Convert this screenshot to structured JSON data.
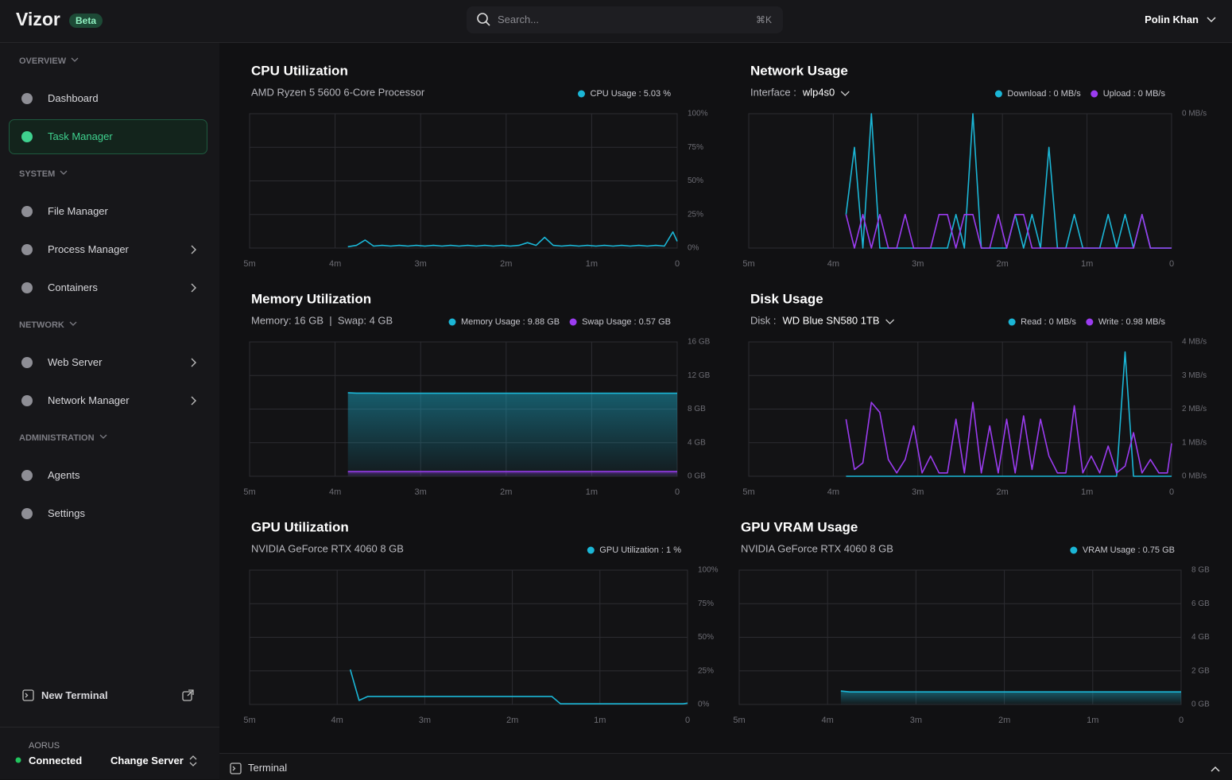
{
  "header": {
    "brand": "Vizor",
    "badge": "Beta",
    "search_placeholder": "Search...",
    "search_shortcut": "⌘K",
    "user_name": "Polin Khan"
  },
  "sidebar": {
    "sections": [
      {
        "title": "OVERVIEW",
        "items": [
          {
            "label": "Dashboard"
          },
          {
            "label": "Task Manager",
            "active": true
          }
        ]
      },
      {
        "title": "SYSTEM",
        "items": [
          {
            "label": "File Manager"
          },
          {
            "label": "Process Manager",
            "submenu": true
          },
          {
            "label": "Containers",
            "submenu": true
          }
        ]
      },
      {
        "title": "NETWORK",
        "items": [
          {
            "label": "Web Server",
            "submenu": true
          },
          {
            "label": "Network Manager",
            "submenu": true
          }
        ]
      },
      {
        "title": "ADMINISTRATION",
        "items": [
          {
            "label": "Agents"
          },
          {
            "label": "Settings"
          }
        ]
      }
    ],
    "new_terminal": "New Terminal",
    "server_name": "AORUS",
    "server_status": "Connected",
    "change_server": "Change Server"
  },
  "terminal_bar": {
    "label": "Terminal"
  },
  "chart_data": [
    {
      "type": "line",
      "title": "CPU Utilization",
      "subtitle": "AMD Ryzen 5 5600 6-Core Processor",
      "x": [
        3.85,
        3.75,
        3.65,
        3.55,
        3.45,
        3.35,
        3.25,
        3.15,
        3.05,
        2.95,
        2.85,
        2.75,
        2.65,
        2.55,
        2.45,
        2.35,
        2.25,
        2.15,
        2.05,
        1.95,
        1.85,
        1.75,
        1.65,
        1.55,
        1.45,
        1.35,
        1.25,
        1.15,
        1.05,
        0.95,
        0.85,
        0.75,
        0.65,
        0.55,
        0.45,
        0.35,
        0.25,
        0.15,
        0.05,
        0
      ],
      "xlim": [
        5,
        0
      ],
      "xticks": [
        {
          "value": 5,
          "label": "5m"
        },
        {
          "value": 4,
          "label": "4m"
        },
        {
          "value": 3,
          "label": "3m"
        },
        {
          "value": 2,
          "label": "2m"
        },
        {
          "value": 1,
          "label": "1m"
        },
        0
      ],
      "ylim": [
        0,
        100
      ],
      "yticks": [
        {
          "value": 0,
          "label": "0%"
        },
        {
          "value": 25,
          "label": "25%"
        },
        {
          "value": 50,
          "label": "50%"
        },
        {
          "value": 75,
          "label": "75%"
        },
        {
          "value": 100,
          "label": "100%"
        }
      ],
      "grid": true,
      "series": [
        {
          "name": "CPU Usage : 5.03 %",
          "color": "#1bb6d6",
          "values": [
            1,
            2,
            6,
            1.5,
            2,
            1.5,
            2,
            1.5,
            2,
            1.5,
            2,
            1.5,
            2,
            1.5,
            2,
            1.5,
            2,
            1.5,
            2,
            1.5,
            2,
            4,
            2,
            8,
            2,
            1.5,
            2,
            1.5,
            2,
            1.5,
            2,
            1.5,
            2,
            1.5,
            2,
            1.5,
            2,
            1.5,
            12,
            5.03
          ]
        }
      ]
    },
    {
      "type": "line",
      "title": "Network Usage",
      "subtitle": "Interface :",
      "selector": "wlp4s0",
      "x": [
        3.85,
        3.75,
        3.65,
        3.55,
        3.45,
        3.35,
        3.25,
        3.15,
        3.05,
        2.95,
        2.85,
        2.75,
        2.65,
        2.55,
        2.45,
        2.35,
        2.25,
        2.15,
        2.05,
        1.95,
        1.85,
        1.75,
        1.65,
        1.55,
        1.45,
        1.35,
        1.25,
        1.15,
        1.05,
        0.95,
        0.85,
        0.75,
        0.65,
        0.55,
        0.45,
        0.35,
        0.25,
        0.15,
        0.05,
        0
      ],
      "xlim": [
        5,
        0
      ],
      "xticks": [
        {
          "value": 5,
          "label": "5m"
        },
        {
          "value": 4,
          "label": "4m"
        },
        {
          "value": 3,
          "label": "3m"
        },
        {
          "value": 2,
          "label": "2m"
        },
        {
          "value": 1,
          "label": "1m"
        },
        0
      ],
      "ylim": [
        0,
        0.004
      ],
      "yticks": [
        {
          "value": 0.004,
          "label": "0 MB/s"
        }
      ],
      "grid": true,
      "series": [
        {
          "name": "Download : 0 MB/s",
          "color": "#1bb6d6",
          "values": [
            0.001,
            0.003,
            0,
            0.004,
            0,
            0,
            0,
            0,
            0,
            0,
            0,
            0,
            0,
            0.001,
            0,
            0.004,
            0,
            0,
            0,
            0,
            0.001,
            0,
            0.001,
            0,
            0.003,
            0,
            0,
            0.001,
            0,
            0,
            0,
            0.001,
            0,
            0.001,
            0,
            0.001,
            0,
            0,
            0,
            0
          ]
        },
        {
          "name": "Upload : 0 MB/s",
          "color": "#9b3cf0",
          "values": [
            0.001,
            0,
            0.001,
            0,
            0.001,
            0,
            0,
            0.001,
            0,
            0,
            0,
            0.001,
            0.001,
            0,
            0.001,
            0.001,
            0,
            0,
            0.001,
            0,
            0.001,
            0.001,
            0,
            0,
            0,
            0,
            0,
            0,
            0,
            0,
            0,
            0,
            0,
            0,
            0,
            0.001,
            0,
            0,
            0,
            0
          ]
        }
      ]
    },
    {
      "type": "area",
      "title": "Memory Utilization",
      "subtitle": "Memory: 16 GB  |  Swap: 4 GB",
      "x": [
        3.85,
        3.75,
        3.65,
        3.55,
        3.45,
        3.35,
        3.25,
        3.15,
        3.05,
        2.95,
        2.85,
        2.75,
        2.65,
        2.55,
        2.45,
        2.35,
        2.25,
        2.15,
        2.05,
        1.95,
        1.85,
        1.75,
        1.65,
        1.55,
        1.45,
        1.35,
        1.25,
        1.15,
        1.05,
        0.95,
        0.85,
        0.75,
        0.65,
        0.55,
        0.45,
        0.35,
        0.25,
        0.15,
        0.05,
        0
      ],
      "xlim": [
        5,
        0
      ],
      "xticks": [
        {
          "value": 5,
          "label": "5m"
        },
        {
          "value": 4,
          "label": "4m"
        },
        {
          "value": 3,
          "label": "3m"
        },
        {
          "value": 2,
          "label": "2m"
        },
        {
          "value": 1,
          "label": "1m"
        },
        0
      ],
      "ylim": [
        0,
        16
      ],
      "yticks": [
        {
          "value": 0,
          "label": "0 GB"
        },
        {
          "value": 4,
          "label": "4 GB"
        },
        {
          "value": 8,
          "label": "8 GB"
        },
        {
          "value": 12,
          "label": "12 GB"
        },
        {
          "value": 16,
          "label": "16 GB"
        }
      ],
      "grid": true,
      "series": [
        {
          "name": "Memory Usage : 9.88 GB",
          "color": "#1bb6d6",
          "values": [
            9.95,
            9.9,
            9.9,
            9.9,
            9.88,
            9.88,
            9.88,
            9.88,
            9.88,
            9.88,
            9.88,
            9.88,
            9.88,
            9.88,
            9.88,
            9.88,
            9.88,
            9.88,
            9.88,
            9.88,
            9.88,
            9.88,
            9.88,
            9.88,
            9.88,
            9.88,
            9.88,
            9.88,
            9.88,
            9.88,
            9.88,
            9.88,
            9.88,
            9.88,
            9.88,
            9.88,
            9.88,
            9.88,
            9.88,
            9.88
          ]
        },
        {
          "name": "Swap Usage : 0.57 GB",
          "color": "#9b3cf0",
          "values": [
            0.57,
            0.57,
            0.57,
            0.57,
            0.57,
            0.57,
            0.57,
            0.57,
            0.57,
            0.57,
            0.57,
            0.57,
            0.57,
            0.57,
            0.57,
            0.57,
            0.57,
            0.57,
            0.57,
            0.57,
            0.57,
            0.57,
            0.57,
            0.57,
            0.57,
            0.57,
            0.57,
            0.57,
            0.57,
            0.57,
            0.57,
            0.57,
            0.57,
            0.57,
            0.57,
            0.57,
            0.57,
            0.57,
            0.57,
            0.57
          ]
        }
      ]
    },
    {
      "type": "line",
      "title": "Disk Usage",
      "subtitle": "Disk :",
      "selector": "WD Blue SN580 1TB",
      "x": [
        3.85,
        3.75,
        3.65,
        3.55,
        3.45,
        3.35,
        3.25,
        3.15,
        3.05,
        2.95,
        2.85,
        2.75,
        2.65,
        2.55,
        2.45,
        2.35,
        2.25,
        2.15,
        2.05,
        1.95,
        1.85,
        1.75,
        1.65,
        1.55,
        1.45,
        1.35,
        1.25,
        1.15,
        1.05,
        0.95,
        0.85,
        0.75,
        0.65,
        0.55,
        0.45,
        0.35,
        0.25,
        0.15,
        0.05,
        0
      ],
      "xlim": [
        5,
        0
      ],
      "xticks": [
        {
          "value": 5,
          "label": "5m"
        },
        {
          "value": 4,
          "label": "4m"
        },
        {
          "value": 3,
          "label": "3m"
        },
        {
          "value": 2,
          "label": "2m"
        },
        {
          "value": 1,
          "label": "1m"
        },
        0
      ],
      "ylim": [
        0,
        4
      ],
      "yticks": [
        {
          "value": 0,
          "label": "0 MB/s"
        },
        {
          "value": 1,
          "label": "1 MB/s"
        },
        {
          "value": 2,
          "label": "2 MB/s"
        },
        {
          "value": 3,
          "label": "3 MB/s"
        },
        {
          "value": 4,
          "label": "4 MB/s"
        }
      ],
      "grid": true,
      "series": [
        {
          "name": "Read : 0 MB/s",
          "color": "#1bb6d6",
          "values": [
            0,
            0,
            0,
            0,
            0,
            0,
            0,
            0,
            0,
            0,
            0,
            0,
            0,
            0,
            0,
            0,
            0,
            0,
            0,
            0,
            0,
            0,
            0,
            0,
            0,
            0,
            0,
            0,
            0,
            0,
            0,
            0,
            0,
            3.7,
            0,
            0,
            0,
            0,
            0,
            0
          ]
        },
        {
          "name": "Write : 0.98 MB/s",
          "color": "#9b3cf0",
          "values": [
            1.7,
            0.2,
            0.4,
            2.2,
            1.9,
            0.5,
            0.1,
            0.5,
            1.5,
            0.1,
            0.6,
            0.1,
            0.1,
            1.7,
            0.1,
            2.2,
            0.1,
            1.5,
            0.1,
            1.7,
            0.1,
            1.8,
            0.2,
            1.7,
            0.6,
            0.1,
            0.1,
            2.1,
            0.1,
            0.6,
            0.1,
            0.9,
            0.1,
            0.3,
            1.3,
            0.1,
            0.5,
            0.1,
            0.1,
            0.98
          ]
        }
      ]
    },
    {
      "type": "line",
      "title": "GPU Utilization",
      "subtitle": "NVIDIA GeForce RTX 4060 8 GB",
      "x": [
        3.85,
        3.75,
        3.65,
        3.55,
        3.45,
        3.35,
        3.25,
        3.15,
        3.05,
        2.95,
        2.85,
        2.75,
        2.65,
        2.55,
        2.45,
        2.35,
        2.25,
        2.15,
        2.05,
        1.95,
        1.85,
        1.75,
        1.65,
        1.55,
        1.45,
        1.35,
        1.25,
        1.15,
        1.05,
        0.95,
        0.85,
        0.75,
        0.65,
        0.55,
        0.45,
        0.35,
        0.25,
        0.15,
        0.05,
        0
      ],
      "xlim": [
        5,
        0
      ],
      "xticks": [
        {
          "value": 5,
          "label": "5m"
        },
        {
          "value": 4,
          "label": "4m"
        },
        {
          "value": 3,
          "label": "3m"
        },
        {
          "value": 2,
          "label": "2m"
        },
        {
          "value": 1,
          "label": "1m"
        },
        0
      ],
      "ylim": [
        0,
        100
      ],
      "yticks": [
        {
          "value": 0,
          "label": "0%"
        },
        {
          "value": 25,
          "label": "25%"
        },
        {
          "value": 50,
          "label": "50%"
        },
        {
          "value": 75,
          "label": "75%"
        },
        {
          "value": 100,
          "label": "100%"
        }
      ],
      "grid": true,
      "series": [
        {
          "name": "GPU Utilization : 1 %",
          "color": "#1bb6d6",
          "values": [
            26,
            3,
            6,
            6,
            6,
            6,
            6,
            6,
            6,
            6,
            6,
            6,
            6,
            6,
            6,
            6,
            6,
            6,
            6,
            6,
            6,
            6,
            6,
            6,
            0.5,
            0.5,
            0.5,
            0.5,
            0.5,
            0.5,
            0.5,
            0.5,
            0.5,
            0.5,
            0.5,
            0.5,
            0.5,
            0.5,
            0.5,
            1
          ]
        }
      ]
    },
    {
      "type": "area",
      "title": "GPU VRAM Usage",
      "subtitle": "NVIDIA GeForce RTX 4060 8 GB",
      "x": [
        3.85,
        3.75,
        3.65,
        3.55,
        3.45,
        3.35,
        3.25,
        3.15,
        3.05,
        2.95,
        2.85,
        2.75,
        2.65,
        2.55,
        2.45,
        2.35,
        2.25,
        2.15,
        2.05,
        1.95,
        1.85,
        1.75,
        1.65,
        1.55,
        1.45,
        1.35,
        1.25,
        1.15,
        1.05,
        0.95,
        0.85,
        0.75,
        0.65,
        0.55,
        0.45,
        0.35,
        0.25,
        0.15,
        0.05,
        0
      ],
      "xlim": [
        5,
        0
      ],
      "xticks": [
        {
          "value": 5,
          "label": "5m"
        },
        {
          "value": 4,
          "label": "4m"
        },
        {
          "value": 3,
          "label": "3m"
        },
        {
          "value": 2,
          "label": "2m"
        },
        {
          "value": 1,
          "label": "1m"
        },
        0
      ],
      "ylim": [
        0,
        8
      ],
      "yticks": [
        {
          "value": 0,
          "label": "0 GB"
        },
        {
          "value": 2,
          "label": "2 GB"
        },
        {
          "value": 4,
          "label": "4 GB"
        },
        {
          "value": 6,
          "label": "6 GB"
        },
        {
          "value": 8,
          "label": "8 GB"
        }
      ],
      "grid": true,
      "series": [
        {
          "name": "VRAM Usage : 0.75 GB",
          "color": "#1bb6d6",
          "values": [
            0.8,
            0.75,
            0.75,
            0.75,
            0.75,
            0.75,
            0.75,
            0.75,
            0.75,
            0.75,
            0.75,
            0.75,
            0.75,
            0.75,
            0.75,
            0.75,
            0.75,
            0.75,
            0.75,
            0.75,
            0.75,
            0.75,
            0.75,
            0.75,
            0.75,
            0.75,
            0.75,
            0.75,
            0.75,
            0.75,
            0.75,
            0.75,
            0.75,
            0.75,
            0.75,
            0.75,
            0.75,
            0.75,
            0.75,
            0.75
          ]
        }
      ]
    }
  ]
}
